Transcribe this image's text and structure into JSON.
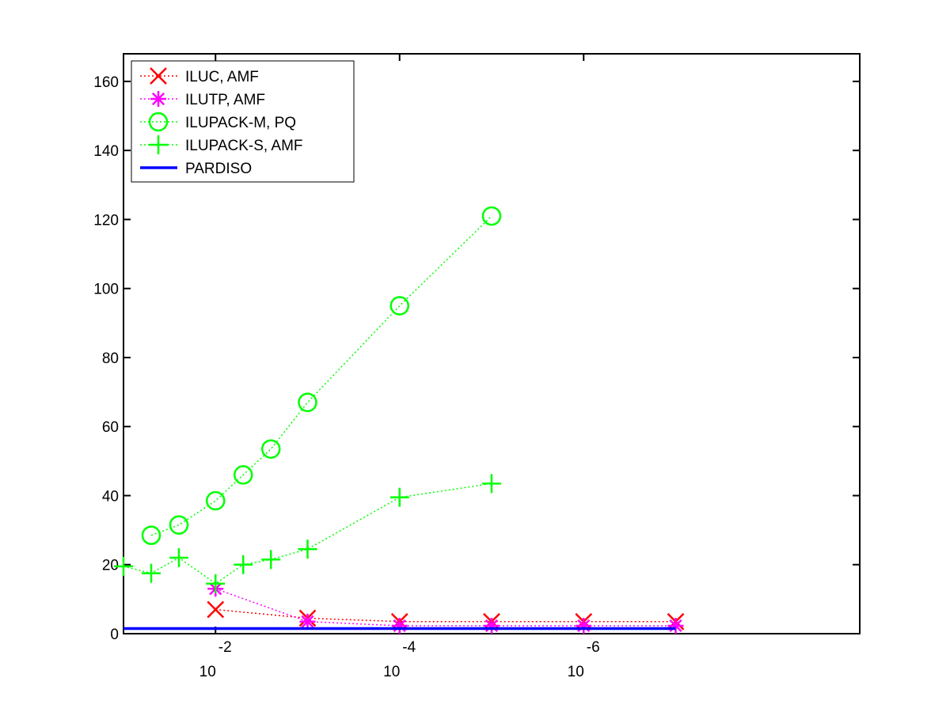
{
  "chart_data": {
    "type": "line",
    "title": "",
    "xlabel": "",
    "ylabel": "",
    "x_scale": "log",
    "x_reversed": true,
    "xlim": [
      0.1,
      1e-09
    ],
    "ylim": [
      0,
      168
    ],
    "y_ticks": [
      0,
      20,
      40,
      60,
      80,
      100,
      120,
      140,
      160
    ],
    "y_tick_labels": [
      "0",
      "20",
      "40",
      "60",
      "80",
      "100",
      "120",
      "140",
      "160"
    ],
    "x_ticks": [
      {
        "value": 0.01,
        "base": "10",
        "exp": "-2"
      },
      {
        "value": 0.0001,
        "base": "10",
        "exp": "-4"
      },
      {
        "value": 1e-06,
        "base": "10",
        "exp": "-6"
      }
    ],
    "grid": false,
    "legend_position": "top-left",
    "series": [
      {
        "name": "ILUC, AMF",
        "color": "#ff0000",
        "marker": "x",
        "line": "dotted",
        "x": [
          0.01,
          0.001,
          0.0001,
          1e-05,
          1e-06,
          1e-07
        ],
        "y": [
          7,
          4.5,
          3.5,
          3.5,
          3.5,
          3.5
        ]
      },
      {
        "name": "ILUTP, AMF",
        "color": "#ff00ff",
        "marker": "asterisk",
        "line": "dotted",
        "x": [
          0.01,
          0.001,
          0.0001,
          1e-05,
          1e-06,
          1e-07
        ],
        "y": [
          13,
          3.5,
          2.3,
          2.3,
          2.3,
          2.3
        ]
      },
      {
        "name": "ILUPACK-M, PQ",
        "color": "#00ff00",
        "marker": "circle",
        "line": "dotted",
        "x": [
          0.05,
          0.025,
          0.01,
          0.005,
          0.0025,
          0.001,
          0.0001,
          1e-05
        ],
        "y": [
          28.5,
          31.5,
          38.5,
          46,
          53.5,
          67,
          95,
          121
        ]
      },
      {
        "name": "ILUPACK-S, AMF",
        "color": "#00ff00",
        "marker": "plus",
        "line": "dotted",
        "x": [
          0.1,
          0.05,
          0.025,
          0.01,
          0.005,
          0.0025,
          0.001,
          0.0001,
          1e-05
        ],
        "y": [
          19.5,
          17.5,
          22,
          14.5,
          20,
          21.5,
          24.5,
          39.5,
          43.5
        ]
      },
      {
        "name": "PARDISO",
        "color": "#0000ff",
        "marker": "none",
        "line": "solid",
        "x": [
          0.1,
          1e-07
        ],
        "y": [
          1.5,
          1.5
        ]
      }
    ]
  }
}
